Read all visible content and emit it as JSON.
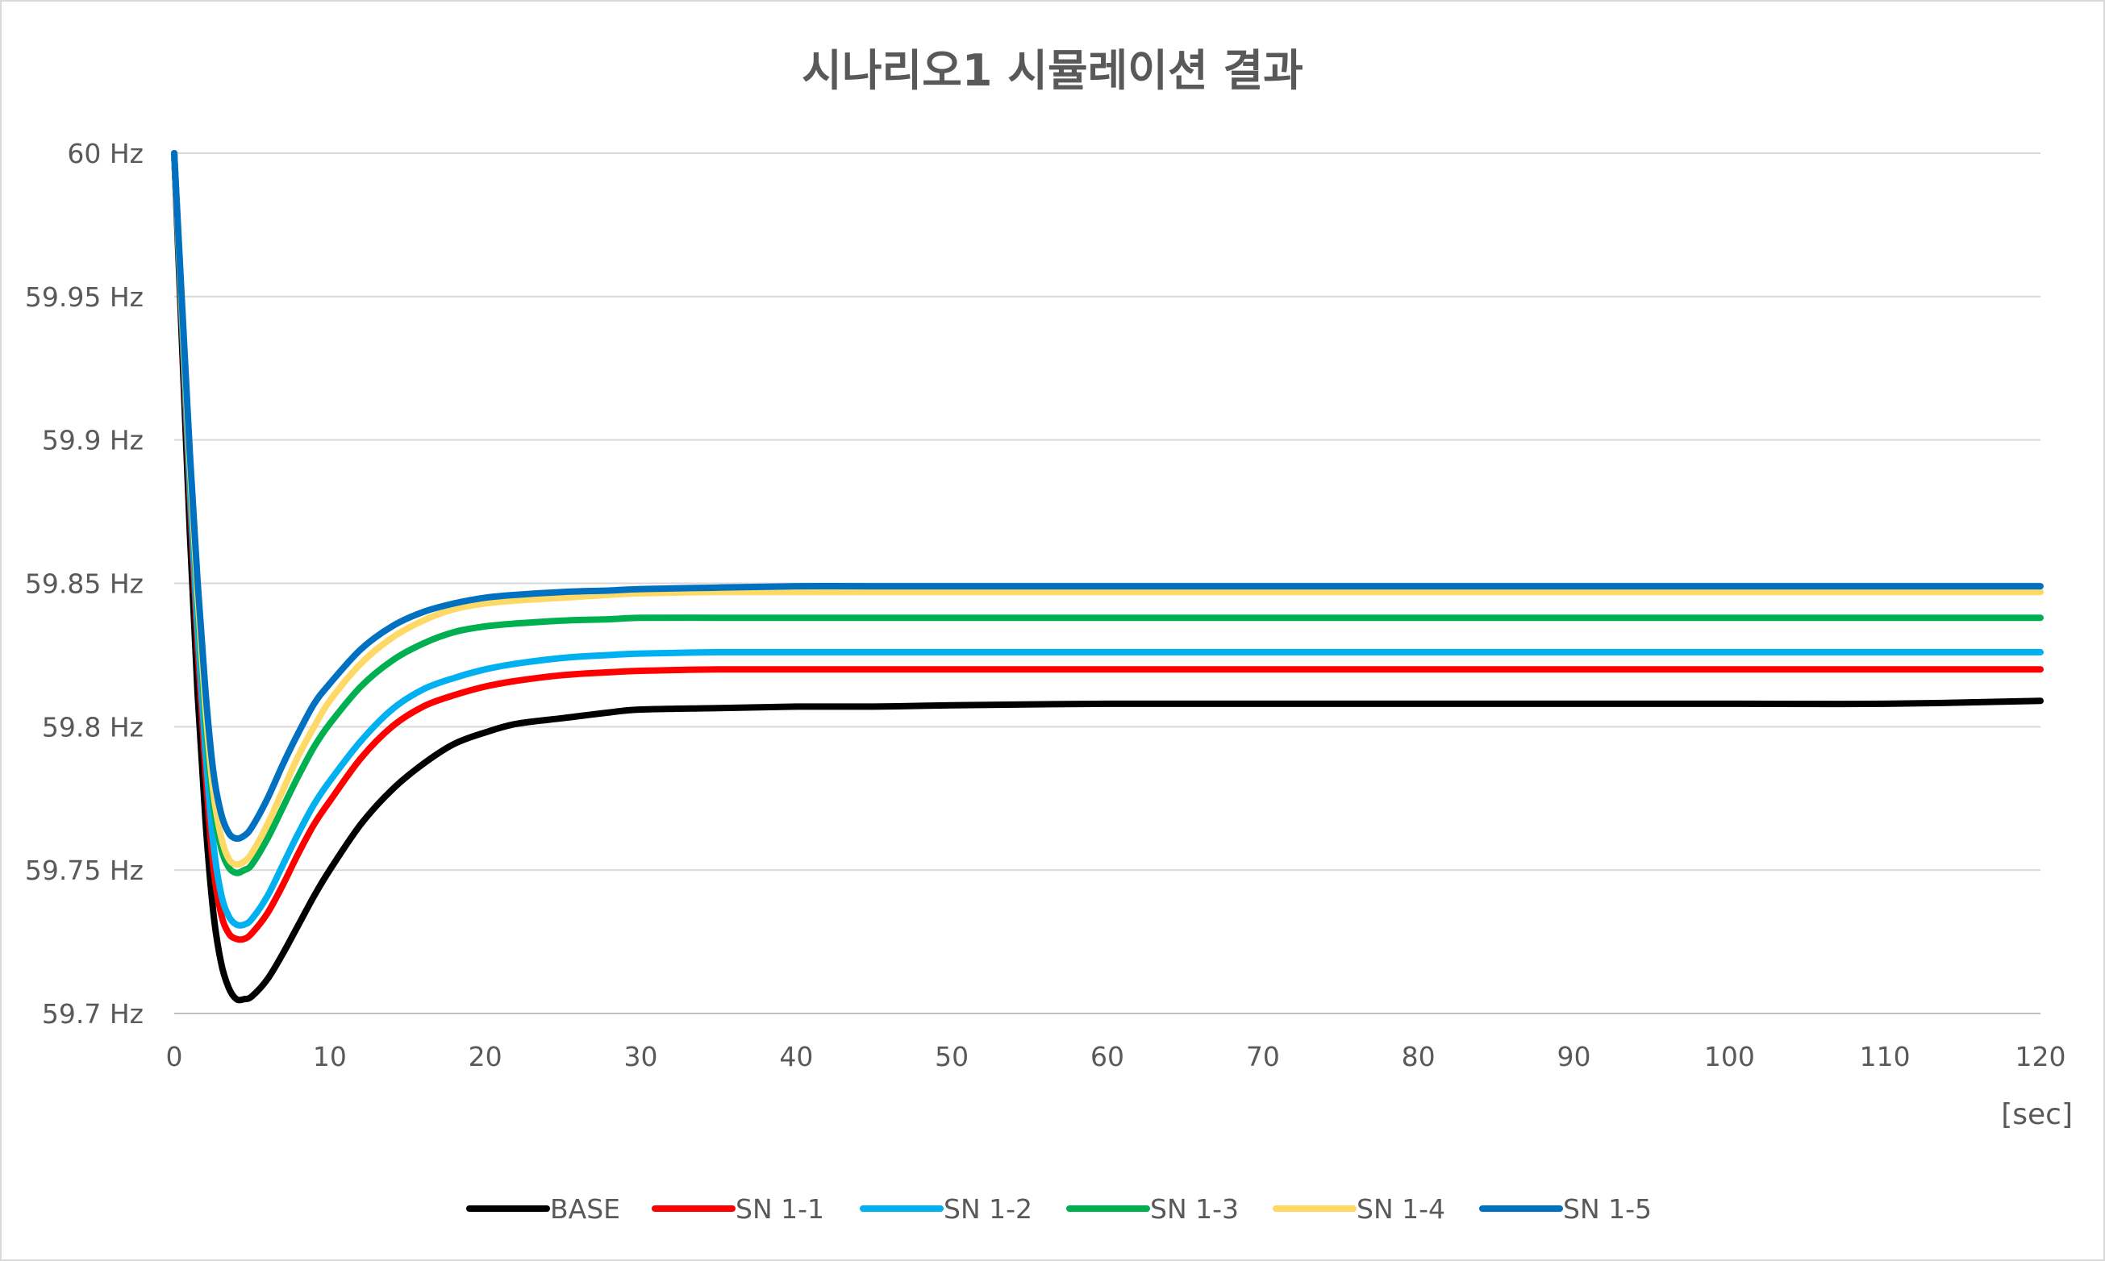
{
  "chart_data": {
    "type": "line",
    "title": "시나리오1 시뮬레이션 결과",
    "x_unit_label": "[sec]",
    "xlim": [
      0,
      120
    ],
    "ylim": [
      59.7,
      60
    ],
    "x_ticks": [
      0,
      10,
      20,
      30,
      40,
      50,
      60,
      70,
      80,
      90,
      100,
      110,
      120
    ],
    "y_ticks": [
      {
        "value": 59.7,
        "label": "59.7 Hz"
      },
      {
        "value": 59.75,
        "label": "59.75 Hz"
      },
      {
        "value": 59.8,
        "label": "59.8 Hz"
      },
      {
        "value": 59.85,
        "label": "59.85 Hz"
      },
      {
        "value": 59.9,
        "label": "59.9 Hz"
      },
      {
        "value": 59.95,
        "label": "59.95 Hz"
      },
      {
        "value": 60,
        "label": "60 Hz"
      }
    ],
    "grid": true,
    "legend_position": "bottom",
    "x": [
      0,
      0.5,
      1,
      1.5,
      2,
      2.5,
      3,
      3.5,
      4,
      4.5,
      5,
      6,
      7,
      8,
      9,
      10,
      12,
      14,
      16,
      18,
      20,
      22,
      25,
      28,
      30,
      35,
      40,
      45,
      50,
      60,
      70,
      80,
      90,
      100,
      110,
      120
    ],
    "series": [
      {
        "name": "BASE",
        "color": "#000000",
        "values": [
          60.0,
          59.934,
          59.868,
          59.812,
          59.768,
          59.736,
          59.718,
          59.709,
          59.705,
          59.705,
          59.706,
          59.712,
          59.721,
          59.731,
          59.741,
          59.75,
          59.766,
          59.778,
          59.787,
          59.794,
          59.798,
          59.801,
          59.803,
          59.805,
          59.806,
          59.8065,
          59.807,
          59.807,
          59.8075,
          59.808,
          59.808,
          59.808,
          59.808,
          59.808,
          59.808,
          59.809
        ]
      },
      {
        "name": "SN 1-1",
        "color": "#ff0000",
        "values": [
          60.0,
          59.94,
          59.88,
          59.828,
          59.785,
          59.752,
          59.735,
          59.728,
          59.726,
          59.726,
          59.728,
          59.735,
          59.745,
          59.756,
          59.766,
          59.774,
          59.789,
          59.8,
          59.807,
          59.811,
          59.814,
          59.816,
          59.818,
          59.819,
          59.8195,
          59.82,
          59.82,
          59.82,
          59.82,
          59.82,
          59.82,
          59.82,
          59.82,
          59.82,
          59.82,
          59.82
        ]
      },
      {
        "name": "SN 1-2",
        "color": "#00b0f0",
        "values": [
          60.0,
          59.942,
          59.884,
          59.834,
          59.792,
          59.76,
          59.742,
          59.734,
          59.731,
          59.731,
          59.733,
          59.741,
          59.752,
          59.763,
          59.773,
          59.781,
          59.795,
          59.806,
          59.813,
          59.817,
          59.82,
          59.822,
          59.824,
          59.825,
          59.8255,
          59.826,
          59.826,
          59.826,
          59.826,
          59.826,
          59.826,
          59.826,
          59.826,
          59.826,
          59.826,
          59.826
        ]
      },
      {
        "name": "SN 1-3",
        "color": "#00b050",
        "values": [
          60.0,
          59.945,
          59.89,
          59.843,
          59.803,
          59.774,
          59.758,
          59.751,
          59.749,
          59.75,
          59.752,
          59.761,
          59.772,
          59.783,
          59.793,
          59.801,
          59.814,
          59.823,
          59.829,
          59.833,
          59.835,
          59.836,
          59.837,
          59.8375,
          59.838,
          59.838,
          59.838,
          59.838,
          59.838,
          59.838,
          59.838,
          59.838,
          59.838,
          59.838,
          59.838,
          59.838
        ]
      },
      {
        "name": "SN 1-4",
        "color": "#ffd966",
        "values": [
          60.0,
          59.946,
          59.892,
          59.846,
          59.807,
          59.778,
          59.762,
          59.754,
          59.752,
          59.753,
          59.756,
          59.766,
          59.778,
          59.79,
          59.8,
          59.809,
          59.822,
          59.831,
          59.837,
          59.841,
          59.843,
          59.844,
          59.845,
          59.846,
          59.8465,
          59.847,
          59.847,
          59.847,
          59.847,
          59.847,
          59.847,
          59.847,
          59.847,
          59.847,
          59.847,
          59.847
        ]
      },
      {
        "name": "SN 1-5",
        "color": "#0070c0",
        "values": [
          60.0,
          59.948,
          59.896,
          59.851,
          59.813,
          59.785,
          59.77,
          59.763,
          59.761,
          59.762,
          59.765,
          59.775,
          59.787,
          59.798,
          59.808,
          59.815,
          59.827,
          59.835,
          59.84,
          59.843,
          59.845,
          59.846,
          59.847,
          59.8475,
          59.848,
          59.8485,
          59.849,
          59.849,
          59.849,
          59.849,
          59.849,
          59.849,
          59.849,
          59.849,
          59.849,
          59.849
        ]
      }
    ]
  }
}
